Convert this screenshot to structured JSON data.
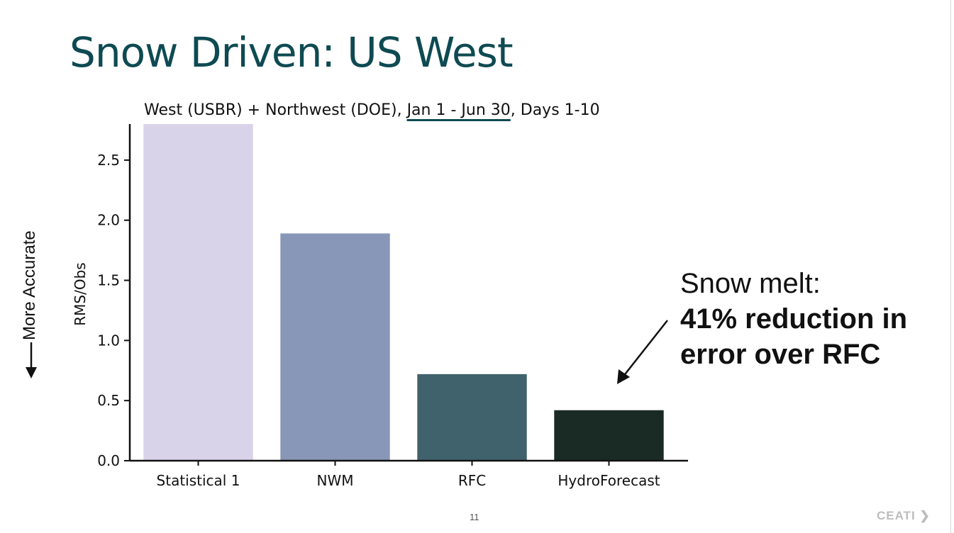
{
  "slide": {
    "title": "Snow Driven: US West",
    "page_number": "11",
    "brand": "CEATI",
    "side_label": "More Accurate",
    "annotation_line1": "Snow melt:",
    "annotation_line2": "41% reduction in",
    "annotation_line3": "error over RFC"
  },
  "chart_data": {
    "type": "bar",
    "title_part1": "West (USBR) + Northwest (DOE), ",
    "title_underlined": "Jan 1 - Jun 30",
    "title_part2": ", Days 1-10",
    "ylabel": "RMS/Obs",
    "xlabel": "",
    "ylim": [
      0,
      2.8
    ],
    "yticks": [
      "0.0",
      "0.5",
      "1.0",
      "1.5",
      "2.0",
      "2.5"
    ],
    "categories": [
      "Statistical 1",
      "NWM",
      "RFC",
      "HydroForecast"
    ],
    "values": [
      2.8,
      1.89,
      0.72,
      0.42
    ],
    "colors": [
      "#d9d3ea",
      "#8896b7",
      "#40626c",
      "#1a2a24"
    ],
    "grid": false,
    "legend": "none"
  }
}
